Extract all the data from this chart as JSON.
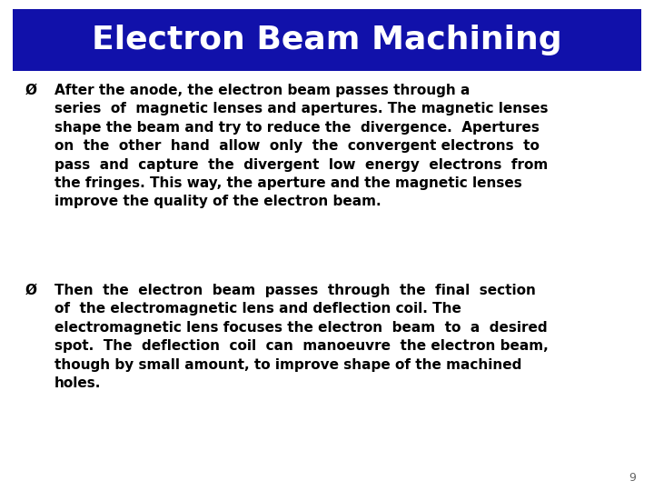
{
  "title": "Electron Beam Machining",
  "title_bg_color": "#1111aa",
  "title_text_color": "#ffffff",
  "title_fontsize": 26,
  "bg_color": "#ffffff",
  "text_color": "#000000",
  "body_fontsize": 11.0,
  "page_number": "9",
  "bullet1_lines": [
    "After the anode, the electron beam passes through a",
    "series  of  magnetic lenses and apertures. The magnetic lenses",
    "shape the beam and try to reduce the  divergence.  Apertures",
    "on  the  other  hand  allow  only  the  convergent electrons  to",
    "pass  and  capture  the  divergent  low  energy  electrons  from",
    "the fringes. This way, the aperture and the magnetic lenses",
    "improve the quality of the electron beam."
  ],
  "bullet2_lines": [
    "Then  the  electron  beam  passes  through  the  final  section",
    "of  the electromagnetic lens and deflection coil. The",
    "electromagnetic lens focuses the electron  beam  to  a  desired",
    "spot.  The  deflection  coil  can  manoeuvre  the electron beam,",
    "though by small amount, to improve shape of the machined",
    "holes."
  ]
}
